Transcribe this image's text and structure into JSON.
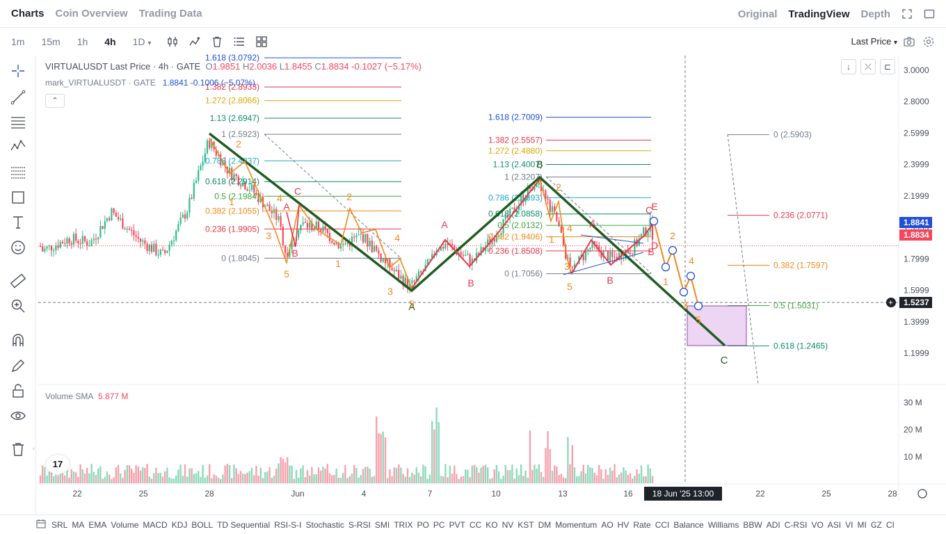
{
  "topbar": {
    "tabs": [
      "Charts",
      "Coin Overview",
      "Trading Data"
    ],
    "views": [
      "Original",
      "TradingView",
      "Depth"
    ],
    "icons": [
      "fullscreen-icon",
      "window-icon"
    ]
  },
  "toolbar": {
    "intervals": [
      "1m",
      "15m",
      "1h",
      "4h",
      "1D"
    ],
    "active_interval": "4h",
    "dropdown_caret": "▾",
    "price_type": "Last Price"
  },
  "legend": {
    "symbol": "VIRTUALUSDT Last Price · 4h · GATE",
    "o_label": "O",
    "o_value": "1.9851",
    "h_label": "H",
    "h_value": "2.0036",
    "l_label": "L",
    "l_value": "1.8455",
    "c_label": "C",
    "c_value": "1.8834",
    "change": "-0.1027 (−5.17%)",
    "mark_name": "mark_VIRTUALUSDT · GATE",
    "mark_value": "1.8841",
    "mark_change": "-0.1006 (−5.07%)"
  },
  "volume": {
    "label": "Volume SMA",
    "value": "5.877 M",
    "axis": [
      "30 M",
      "20 M",
      "10 M"
    ]
  },
  "price_axis": [
    "3.0000",
    "2.8000",
    "2.5999",
    "2.3999",
    "2.1999",
    "1.9999",
    "1.7999",
    "1.5999",
    "1.3999",
    "1.1999"
  ],
  "price_tags": {
    "mark": "1.8841",
    "last": "1.8834",
    "cursor": "1.5237"
  },
  "time_axis": [
    "22",
    "25",
    "28",
    "Jun",
    "4",
    "7",
    "10",
    "13",
    "16",
    "19",
    "22",
    "25",
    "28"
  ],
  "cursor_time": "18 Jun '25   13:00",
  "fib_left": [
    "1.618 (3.0792)",
    "1.382 (2.8933)",
    "1.272 (2.8066)",
    "1.13 (2.6947)",
    "1 (2.5923)",
    "0.786 (2.4237)",
    "0.618 (2.2914)",
    "0.5 (2.1984)",
    "0.382 (2.1055)",
    "0.236 (1.9905)",
    "0 (1.8045)"
  ],
  "fib_mid": [
    "1.618 (2.7009)",
    "1.382 (2.5557)",
    "1.272 (2.4880)",
    "1.13 (2.4007)",
    "1 (2.3207)",
    "0.786 (2.1893)",
    "0.618 (2.0858)",
    "0.5 (2.0132)",
    "0.382 (1.9406)",
    "0.236 (1.8508)",
    "0 (1.7056)"
  ],
  "fib_right": [
    "0 (2.5903)",
    "0.236 (2.0771)",
    "0.382 (1.7597)",
    "0.5 (1.5031)",
    "0.618 (1.2465)"
  ],
  "wave_labels": {
    "big": [
      "A",
      "B",
      "C"
    ],
    "orange": [
      "1",
      "2",
      "3",
      "4",
      "5"
    ],
    "red": [
      "A",
      "B",
      "C",
      "D",
      "E"
    ]
  },
  "bottom_indicators": [
    "SRL",
    "MA",
    "EMA",
    "Volume",
    "MACD",
    "KDJ",
    "BOLL",
    "TD Sequential",
    "RSI-S-I",
    "Stochastic",
    "S-RSI",
    "SMI",
    "TRIX",
    "PO",
    "PC",
    "PVT",
    "CC",
    "KO",
    "NV",
    "KST",
    "DM",
    "Momentum",
    "AO",
    "HV",
    "Rate",
    "CCI",
    "Balance",
    "Williams",
    "BBW",
    "ADI",
    "C-RSI",
    "VO",
    "ASI",
    "VI",
    "MI",
    "CZ",
    "CI"
  ],
  "bottom_more": "›",
  "tv_logo": "17",
  "left_collapse": "‹",
  "collapse_btn": "⌃",
  "colors": {
    "up": "#2ebd85",
    "down": "#f6465d",
    "wave_green": "#1f5c1f",
    "wave_orange": "#f0891c",
    "wave_red": "#e8364a",
    "tag_blue": "#1e4fd6",
    "tag_red": "#f6465d"
  }
}
